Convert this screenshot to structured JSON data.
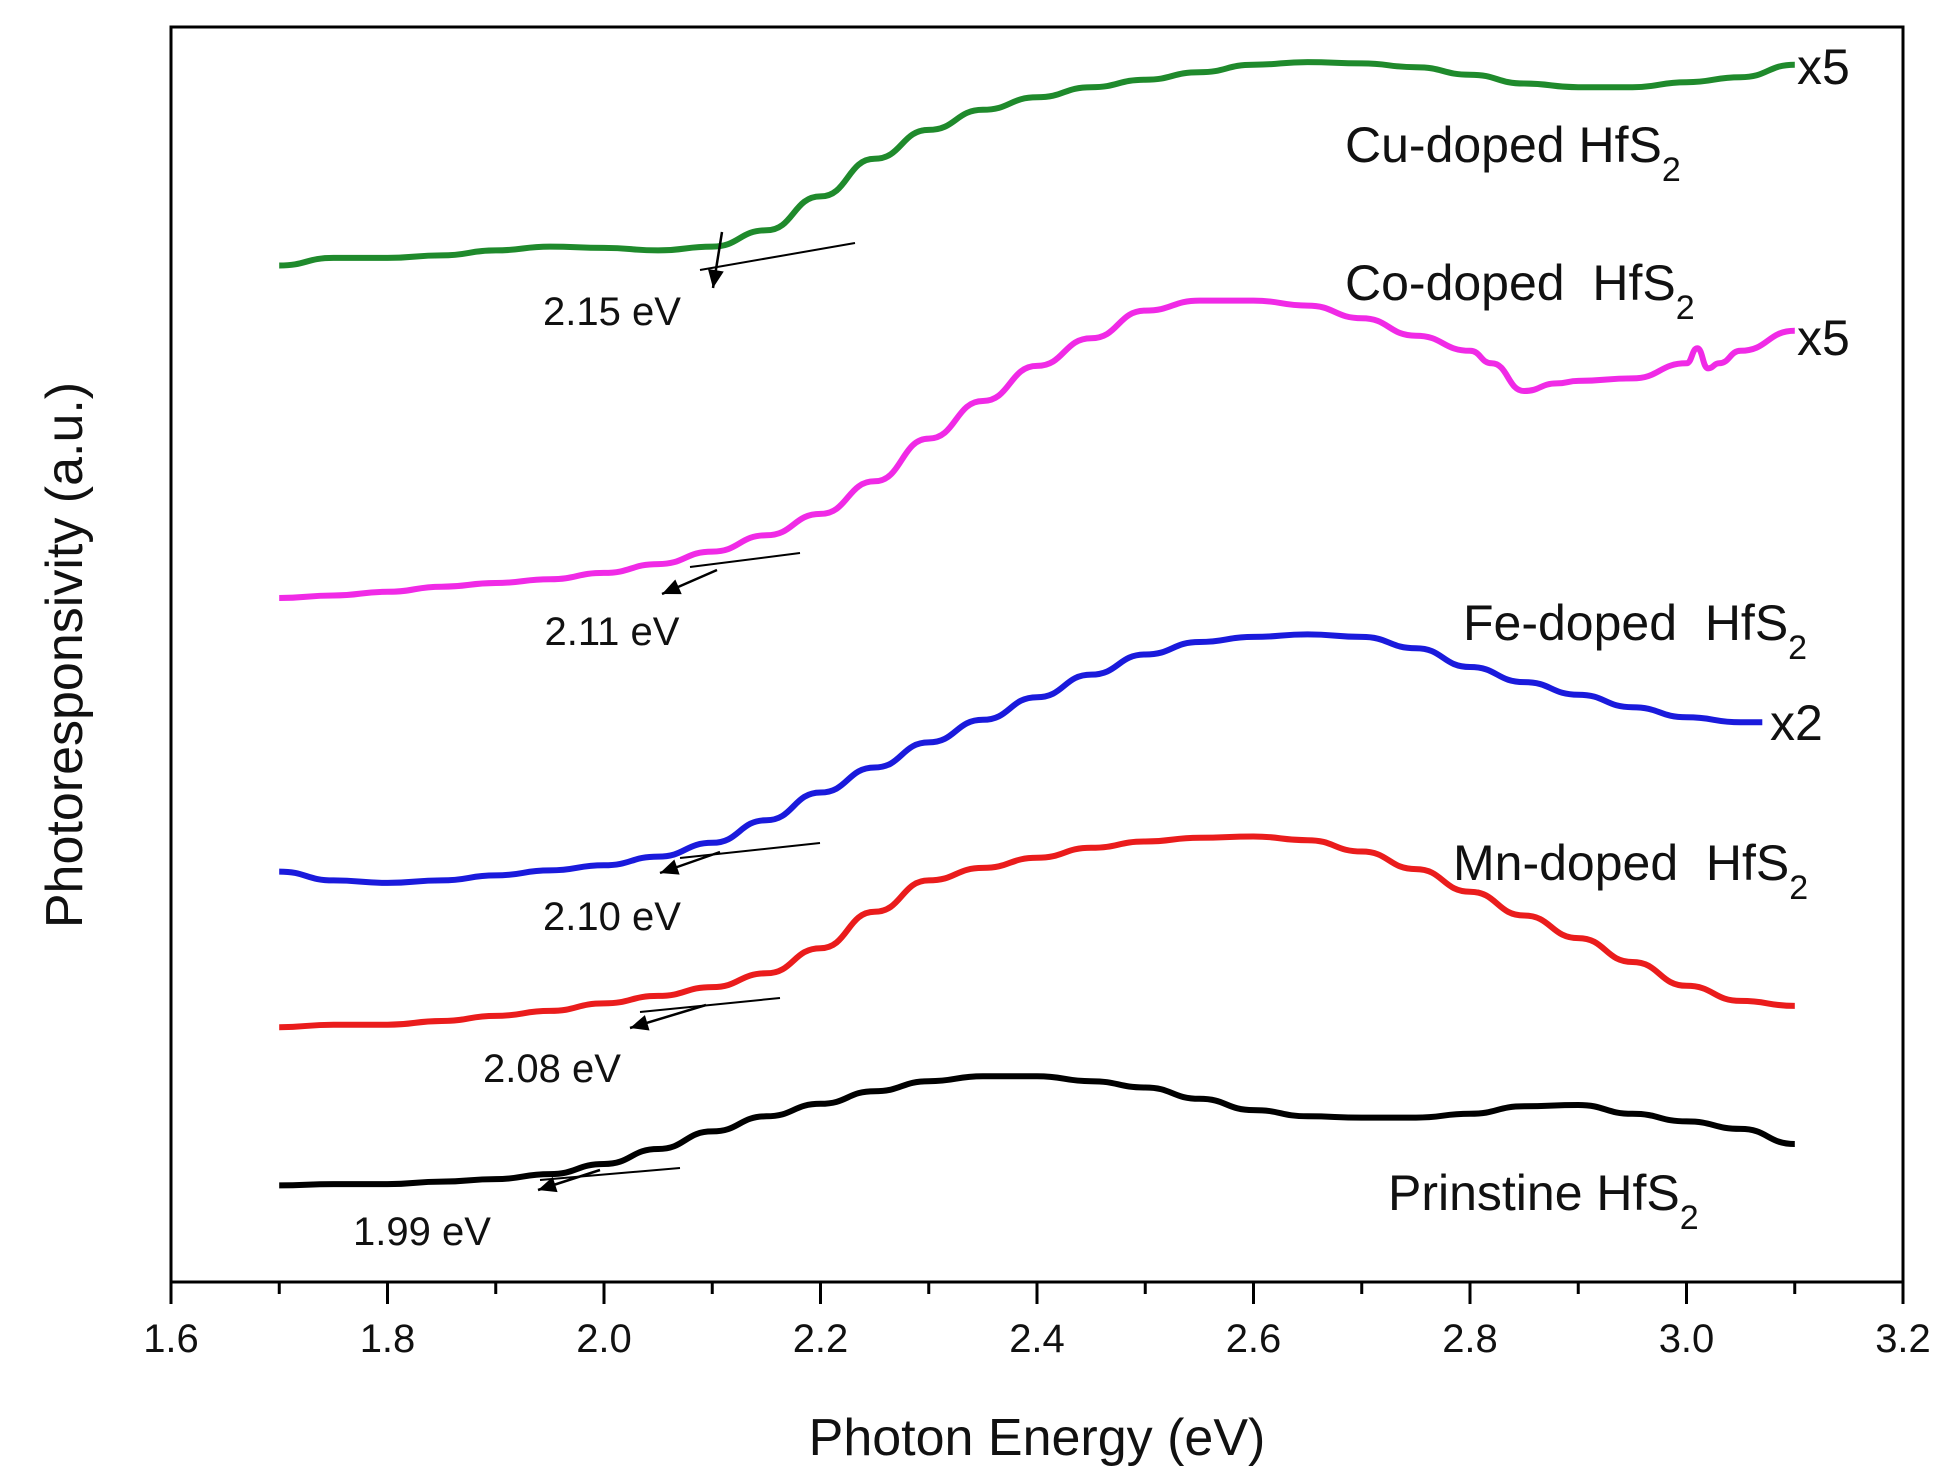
{
  "chart_data": {
    "type": "line",
    "xlabel": "Photon Energy (eV)",
    "ylabel": "Photoresponsivity (a.u.)",
    "xlim": [
      1.6,
      3.2
    ],
    "ylim": [
      0,
      10
    ],
    "x_ticks": [
      "1.6",
      "1.8",
      "2.0",
      "2.2",
      "2.4",
      "2.6",
      "2.8",
      "3.0",
      "3.2"
    ],
    "y_tick_labels": false,
    "grid": false,
    "series": [
      {
        "name": "Cu-doped HfS",
        "name_sub": "2",
        "color": "#1f8a2c",
        "scale_note": "x5",
        "onset_label": "2.15 eV",
        "onset_eV": 2.15,
        "x": [
          1.7,
          1.75,
          1.8,
          1.85,
          1.9,
          1.95,
          2.0,
          2.05,
          2.1,
          2.15,
          2.2,
          2.25,
          2.3,
          2.35,
          2.4,
          2.45,
          2.5,
          2.55,
          2.6,
          2.65,
          2.7,
          2.75,
          2.8,
          2.85,
          2.9,
          2.95,
          3.0,
          3.05,
          3.1
        ],
        "y": [
          8.1,
          8.16,
          8.16,
          8.18,
          8.22,
          8.25,
          8.24,
          8.22,
          8.25,
          8.38,
          8.65,
          8.95,
          9.18,
          9.34,
          9.44,
          9.52,
          9.58,
          9.64,
          9.7,
          9.72,
          9.71,
          9.68,
          9.62,
          9.55,
          9.52,
          9.52,
          9.56,
          9.6,
          9.7
        ]
      },
      {
        "name": "Co-doped  HfS",
        "name_sub": "2",
        "color": "#f02ae6",
        "scale_note": "x5",
        "onset_label": "2.11 eV",
        "onset_eV": 2.11,
        "x": [
          1.7,
          1.75,
          1.8,
          1.85,
          1.9,
          1.95,
          2.0,
          2.05,
          2.1,
          2.15,
          2.2,
          2.25,
          2.3,
          2.35,
          2.4,
          2.45,
          2.5,
          2.55,
          2.6,
          2.65,
          2.7,
          2.75,
          2.8,
          2.82,
          2.85,
          2.88,
          2.9,
          2.95,
          3.0,
          3.01,
          3.02,
          3.03,
          3.05,
          3.1
        ],
        "y": [
          5.45,
          5.47,
          5.5,
          5.54,
          5.57,
          5.6,
          5.65,
          5.72,
          5.82,
          5.95,
          6.12,
          6.38,
          6.72,
          7.02,
          7.3,
          7.52,
          7.74,
          7.82,
          7.82,
          7.78,
          7.68,
          7.54,
          7.42,
          7.32,
          7.1,
          7.16,
          7.18,
          7.2,
          7.32,
          7.44,
          7.28,
          7.32,
          7.42,
          7.58
        ]
      },
      {
        "name": "Fe-doped  HfS",
        "name_sub": "2",
        "color": "#1a1adc",
        "scale_note": "x2",
        "onset_label": "2.10 eV",
        "onset_eV": 2.1,
        "x": [
          1.7,
          1.75,
          1.8,
          1.85,
          1.9,
          1.95,
          2.0,
          2.05,
          2.1,
          2.15,
          2.2,
          2.25,
          2.3,
          2.35,
          2.4,
          2.45,
          2.5,
          2.55,
          2.6,
          2.65,
          2.7,
          2.75,
          2.8,
          2.85,
          2.9,
          2.95,
          3.0,
          3.05,
          3.07
        ],
        "y": [
          3.27,
          3.2,
          3.18,
          3.2,
          3.24,
          3.28,
          3.32,
          3.39,
          3.5,
          3.68,
          3.9,
          4.1,
          4.3,
          4.48,
          4.66,
          4.84,
          5.0,
          5.1,
          5.14,
          5.16,
          5.14,
          5.05,
          4.9,
          4.78,
          4.68,
          4.58,
          4.5,
          4.46,
          4.46
        ]
      },
      {
        "name": "Mn-doped  HfS",
        "name_sub": "2",
        "color": "#ea1c1c",
        "scale_note": "",
        "onset_label": "2.08 eV",
        "onset_eV": 2.08,
        "x": [
          1.7,
          1.75,
          1.8,
          1.85,
          1.9,
          1.95,
          2.0,
          2.05,
          2.1,
          2.15,
          2.2,
          2.25,
          2.3,
          2.35,
          2.4,
          2.45,
          2.5,
          2.55,
          2.6,
          2.65,
          2.7,
          2.75,
          2.8,
          2.85,
          2.9,
          2.95,
          3.0,
          3.05,
          3.1
        ],
        "y": [
          2.03,
          2.05,
          2.05,
          2.08,
          2.12,
          2.16,
          2.22,
          2.28,
          2.35,
          2.46,
          2.66,
          2.95,
          3.2,
          3.3,
          3.38,
          3.46,
          3.51,
          3.54,
          3.55,
          3.52,
          3.43,
          3.29,
          3.11,
          2.92,
          2.74,
          2.55,
          2.36,
          2.24,
          2.2
        ]
      },
      {
        "name": "Prinstine HfS",
        "name_sub": "2",
        "color": "#000000",
        "scale_note": "",
        "onset_label": "1.99 eV",
        "onset_eV": 1.99,
        "x": [
          1.7,
          1.75,
          1.8,
          1.85,
          1.9,
          1.95,
          2.0,
          2.05,
          2.1,
          2.15,
          2.2,
          2.25,
          2.3,
          2.35,
          2.4,
          2.45,
          2.5,
          2.55,
          2.6,
          2.65,
          2.7,
          2.75,
          2.8,
          2.85,
          2.9,
          2.95,
          3.0,
          3.05,
          3.1
        ],
        "y": [
          0.77,
          0.78,
          0.78,
          0.8,
          0.82,
          0.86,
          0.94,
          1.06,
          1.2,
          1.32,
          1.42,
          1.52,
          1.6,
          1.64,
          1.64,
          1.6,
          1.55,
          1.46,
          1.37,
          1.32,
          1.31,
          1.31,
          1.34,
          1.4,
          1.41,
          1.34,
          1.28,
          1.22,
          1.1
        ]
      }
    ]
  }
}
